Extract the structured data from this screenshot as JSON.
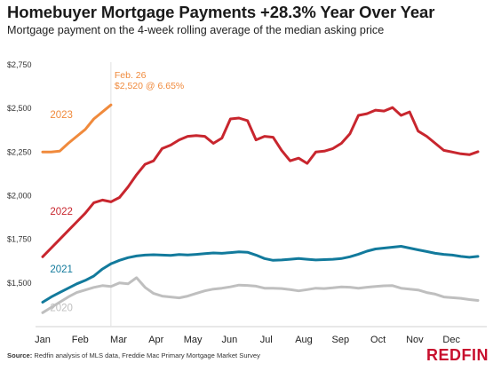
{
  "title": "Homebuyer Mortgage Payments +28.3% Year Over Year",
  "subtitle": "Mortgage payment on the 4-week rolling average of the median asking price",
  "source_label": "Source:",
  "source_text": "Redfin analysis of MLS data, Freddie Mac Primary Mortgage Market Survey",
  "brand": "REDFIN",
  "chart_data": {
    "type": "line",
    "title": "Homebuyer Mortgage Payments +28.3% Year Over Year",
    "subtitle": "Mortgage payment on the 4-week rolling average of the median asking price",
    "xlabel": "",
    "ylabel": "",
    "x_month_ticks": [
      "Jan",
      "Feb",
      "Mar",
      "Apr",
      "May",
      "Jun",
      "Jul",
      "Aug",
      "Sep",
      "Oct",
      "Nov",
      "Dec"
    ],
    "y_ticks": [
      "$1,500",
      "$1,750",
      "$2,000",
      "$2,250",
      "$2,500",
      "$2,750"
    ],
    "ylim": [
      1250,
      2750
    ],
    "x_week_range": [
      1,
      52
    ],
    "grid": false,
    "annotation": {
      "date": "Feb. 26",
      "value_text": "$2,520 @ 6.65%",
      "week": 9,
      "color": "#f08a3c"
    },
    "series": [
      {
        "name": "2020",
        "color": "#bfbfbf",
        "label_week": 3.2,
        "label_value": 1340,
        "weeks": [
          1,
          2,
          3,
          4,
          5,
          6,
          7,
          8,
          9,
          10,
          11,
          12,
          13,
          14,
          15,
          16,
          17,
          18,
          19,
          20,
          21,
          22,
          23,
          24,
          25,
          26,
          27,
          28,
          29,
          30,
          31,
          32,
          33,
          34,
          35,
          36,
          37,
          38,
          39,
          40,
          41,
          42,
          43,
          44,
          45,
          46,
          47,
          48,
          49,
          50,
          51,
          52
        ],
        "values": [
          1330,
          1360,
          1390,
          1420,
          1445,
          1460,
          1475,
          1485,
          1480,
          1500,
          1495,
          1530,
          1475,
          1440,
          1425,
          1420,
          1415,
          1425,
          1440,
          1455,
          1465,
          1470,
          1478,
          1488,
          1486,
          1482,
          1470,
          1470,
          1468,
          1462,
          1455,
          1462,
          1470,
          1468,
          1472,
          1478,
          1476,
          1470,
          1476,
          1480,
          1484,
          1485,
          1470,
          1465,
          1460,
          1445,
          1436,
          1420,
          1416,
          1412,
          1405,
          1400
        ]
      },
      {
        "name": "2021",
        "color": "#127a9c",
        "label_week": 3.2,
        "label_value": 1560,
        "weeks": [
          1,
          2,
          3,
          4,
          5,
          6,
          7,
          8,
          9,
          10,
          11,
          12,
          13,
          14,
          15,
          16,
          17,
          18,
          19,
          20,
          21,
          22,
          23,
          24,
          25,
          26,
          27,
          28,
          29,
          30,
          31,
          32,
          33,
          34,
          35,
          36,
          37,
          38,
          39,
          40,
          41,
          42,
          43,
          44,
          45,
          46,
          47,
          48,
          49,
          50,
          51,
          52
        ],
        "values": [
          1390,
          1420,
          1445,
          1470,
          1495,
          1515,
          1540,
          1580,
          1610,
          1630,
          1645,
          1655,
          1660,
          1662,
          1660,
          1658,
          1663,
          1661,
          1664,
          1668,
          1672,
          1670,
          1674,
          1678,
          1676,
          1660,
          1640,
          1630,
          1632,
          1636,
          1640,
          1636,
          1632,
          1634,
          1636,
          1640,
          1650,
          1665,
          1682,
          1695,
          1700,
          1705,
          1710,
          1700,
          1690,
          1680,
          1670,
          1664,
          1660,
          1652,
          1647,
          1652
        ]
      },
      {
        "name": "2022",
        "color": "#c8262e",
        "label_week": 3.2,
        "label_value": 1890,
        "weeks": [
          1,
          2,
          3,
          4,
          5,
          6,
          7,
          8,
          9,
          10,
          11,
          12,
          13,
          14,
          15,
          16,
          17,
          18,
          19,
          20,
          21,
          22,
          23,
          24,
          25,
          26,
          27,
          28,
          29,
          30,
          31,
          32,
          33,
          34,
          35,
          36,
          37,
          38,
          39,
          40,
          41,
          42,
          43,
          44,
          45,
          46,
          47,
          48,
          49,
          50,
          51,
          52
        ],
        "values": [
          1650,
          1700,
          1750,
          1800,
          1850,
          1900,
          1960,
          1975,
          1965,
          1990,
          2050,
          2120,
          2180,
          2200,
          2270,
          2290,
          2320,
          2340,
          2345,
          2340,
          2300,
          2330,
          2440,
          2445,
          2430,
          2320,
          2340,
          2335,
          2260,
          2200,
          2215,
          2185,
          2250,
          2255,
          2270,
          2300,
          2355,
          2460,
          2470,
          2490,
          2485,
          2505,
          2460,
          2480,
          2370,
          2340,
          2300,
          2260,
          2250,
          2240,
          2235,
          2252
        ]
      },
      {
        "name": "2023",
        "color": "#f08a3c",
        "label_week": 3.2,
        "label_value": 2445,
        "weeks": [
          1,
          2,
          3,
          4,
          5,
          6,
          7,
          8,
          9
        ],
        "values": [
          2250,
          2250,
          2255,
          2300,
          2340,
          2380,
          2440,
          2480,
          2520
        ]
      }
    ]
  }
}
